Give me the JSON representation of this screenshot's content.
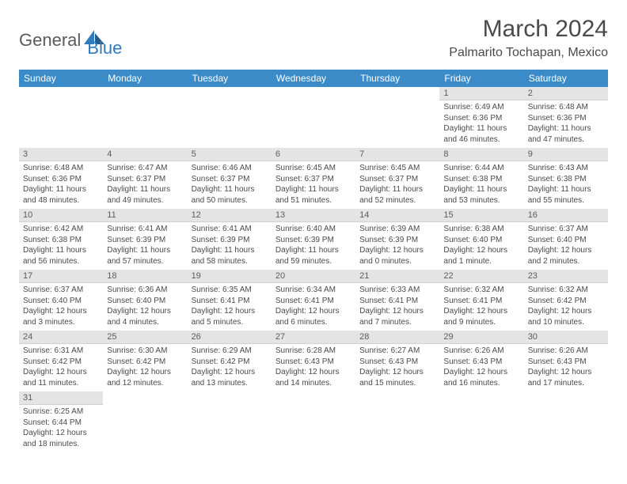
{
  "logo": {
    "general": "General",
    "blue": "Blue"
  },
  "title": "March 2024",
  "location": "Palmarito Tochapan, Mexico",
  "colors": {
    "header_bg": "#3b8bc8",
    "header_text": "#ffffff",
    "daynum_bg": "#e4e4e4",
    "text": "#4a4a4a",
    "logo_gray": "#5a5a5a",
    "logo_blue": "#2f7bbf"
  },
  "weekdays": [
    "Sunday",
    "Monday",
    "Tuesday",
    "Wednesday",
    "Thursday",
    "Friday",
    "Saturday"
  ],
  "weeks": [
    [
      null,
      null,
      null,
      null,
      null,
      {
        "n": "1",
        "sr": "6:49 AM",
        "ss": "6:36 PM",
        "dl": "11 hours and 46 minutes."
      },
      {
        "n": "2",
        "sr": "6:48 AM",
        "ss": "6:36 PM",
        "dl": "11 hours and 47 minutes."
      }
    ],
    [
      {
        "n": "3",
        "sr": "6:48 AM",
        "ss": "6:36 PM",
        "dl": "11 hours and 48 minutes."
      },
      {
        "n": "4",
        "sr": "6:47 AM",
        "ss": "6:37 PM",
        "dl": "11 hours and 49 minutes."
      },
      {
        "n": "5",
        "sr": "6:46 AM",
        "ss": "6:37 PM",
        "dl": "11 hours and 50 minutes."
      },
      {
        "n": "6",
        "sr": "6:45 AM",
        "ss": "6:37 PM",
        "dl": "11 hours and 51 minutes."
      },
      {
        "n": "7",
        "sr": "6:45 AM",
        "ss": "6:37 PM",
        "dl": "11 hours and 52 minutes."
      },
      {
        "n": "8",
        "sr": "6:44 AM",
        "ss": "6:38 PM",
        "dl": "11 hours and 53 minutes."
      },
      {
        "n": "9",
        "sr": "6:43 AM",
        "ss": "6:38 PM",
        "dl": "11 hours and 55 minutes."
      }
    ],
    [
      {
        "n": "10",
        "sr": "6:42 AM",
        "ss": "6:38 PM",
        "dl": "11 hours and 56 minutes."
      },
      {
        "n": "11",
        "sr": "6:41 AM",
        "ss": "6:39 PM",
        "dl": "11 hours and 57 minutes."
      },
      {
        "n": "12",
        "sr": "6:41 AM",
        "ss": "6:39 PM",
        "dl": "11 hours and 58 minutes."
      },
      {
        "n": "13",
        "sr": "6:40 AM",
        "ss": "6:39 PM",
        "dl": "11 hours and 59 minutes."
      },
      {
        "n": "14",
        "sr": "6:39 AM",
        "ss": "6:39 PM",
        "dl": "12 hours and 0 minutes."
      },
      {
        "n": "15",
        "sr": "6:38 AM",
        "ss": "6:40 PM",
        "dl": "12 hours and 1 minute."
      },
      {
        "n": "16",
        "sr": "6:37 AM",
        "ss": "6:40 PM",
        "dl": "12 hours and 2 minutes."
      }
    ],
    [
      {
        "n": "17",
        "sr": "6:37 AM",
        "ss": "6:40 PM",
        "dl": "12 hours and 3 minutes."
      },
      {
        "n": "18",
        "sr": "6:36 AM",
        "ss": "6:40 PM",
        "dl": "12 hours and 4 minutes."
      },
      {
        "n": "19",
        "sr": "6:35 AM",
        "ss": "6:41 PM",
        "dl": "12 hours and 5 minutes."
      },
      {
        "n": "20",
        "sr": "6:34 AM",
        "ss": "6:41 PM",
        "dl": "12 hours and 6 minutes."
      },
      {
        "n": "21",
        "sr": "6:33 AM",
        "ss": "6:41 PM",
        "dl": "12 hours and 7 minutes."
      },
      {
        "n": "22",
        "sr": "6:32 AM",
        "ss": "6:41 PM",
        "dl": "12 hours and 9 minutes."
      },
      {
        "n": "23",
        "sr": "6:32 AM",
        "ss": "6:42 PM",
        "dl": "12 hours and 10 minutes."
      }
    ],
    [
      {
        "n": "24",
        "sr": "6:31 AM",
        "ss": "6:42 PM",
        "dl": "12 hours and 11 minutes."
      },
      {
        "n": "25",
        "sr": "6:30 AM",
        "ss": "6:42 PM",
        "dl": "12 hours and 12 minutes."
      },
      {
        "n": "26",
        "sr": "6:29 AM",
        "ss": "6:42 PM",
        "dl": "12 hours and 13 minutes."
      },
      {
        "n": "27",
        "sr": "6:28 AM",
        "ss": "6:43 PM",
        "dl": "12 hours and 14 minutes."
      },
      {
        "n": "28",
        "sr": "6:27 AM",
        "ss": "6:43 PM",
        "dl": "12 hours and 15 minutes."
      },
      {
        "n": "29",
        "sr": "6:26 AM",
        "ss": "6:43 PM",
        "dl": "12 hours and 16 minutes."
      },
      {
        "n": "30",
        "sr": "6:26 AM",
        "ss": "6:43 PM",
        "dl": "12 hours and 17 minutes."
      }
    ],
    [
      {
        "n": "31",
        "sr": "6:25 AM",
        "ss": "6:44 PM",
        "dl": "12 hours and 18 minutes."
      },
      null,
      null,
      null,
      null,
      null,
      null
    ]
  ],
  "labels": {
    "sunrise": "Sunrise:",
    "sunset": "Sunset:",
    "daylight": "Daylight:"
  }
}
